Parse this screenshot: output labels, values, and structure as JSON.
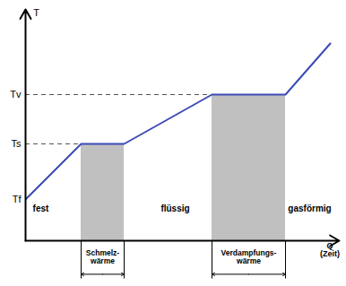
{
  "chart_data": {
    "type": "line",
    "ylabel": "T",
    "xlabel": "Q\n(Zeit)",
    "x": [
      0,
      62,
      110,
      208,
      290,
      340
    ],
    "values": [
      46,
      108,
      108,
      163,
      163,
      220
    ],
    "color": "#3a4bb5",
    "xlim": [
      0,
      350
    ],
    "ylim": [
      0,
      258
    ],
    "xticks": [],
    "yticks": [
      {
        "value": 46,
        "label": "Tf"
      },
      {
        "value": 108,
        "label": "Ts"
      },
      {
        "value": 163,
        "label": "Tv"
      }
    ],
    "tick_labels": "y",
    "annotations": [
      {
        "text": "fest",
        "x": 17,
        "y": 36
      },
      {
        "text": "flüssig",
        "x": 167,
        "y": 36
      },
      {
        "text": "gasförmig",
        "x": 317,
        "y": 36
      }
    ],
    "regions": [
      {
        "label": "Schmelz-\nwärme",
        "x0": 62,
        "x1": 110,
        "y": 108
      },
      {
        "label": "Verdampfungs-\nwärme",
        "x0": 208,
        "x1": 290,
        "y": 163
      }
    ]
  }
}
